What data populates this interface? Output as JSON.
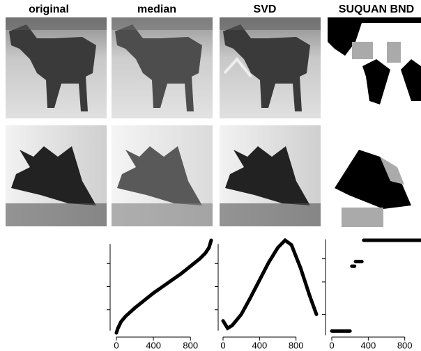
{
  "column_titles": [
    "original",
    "median",
    "SVD",
    "SUQUAN BND"
  ],
  "chart_data": [
    {
      "type": "line",
      "x": [
        0,
        16,
        50,
        100,
        200,
        300,
        400,
        500,
        600,
        700,
        800,
        900,
        960,
        1000,
        1024
      ],
      "values": [
        0,
        0.05,
        0.12,
        0.18,
        0.27,
        0.35,
        0.43,
        0.5,
        0.57,
        0.64,
        0.72,
        0.8,
        0.86,
        0.92,
        1.0
      ],
      "color": "#000000",
      "xlim": [
        0,
        1024
      ],
      "ylim": [
        0,
        1
      ],
      "xticks": [
        0,
        400,
        800
      ],
      "yticks": [
        0.25,
        0.5,
        0.75
      ]
    },
    {
      "type": "line",
      "x": [
        0,
        50,
        100,
        200,
        300,
        400,
        500,
        600,
        680,
        750,
        850,
        950,
        1024
      ],
      "values": [
        0.13,
        0.05,
        0.08,
        0.2,
        0.38,
        0.57,
        0.76,
        0.92,
        1.0,
        0.95,
        0.7,
        0.4,
        0.2
      ],
      "color": "#000000",
      "xlim": [
        0,
        1024
      ],
      "ylim": [
        0,
        1
      ],
      "xticks": [
        0,
        400,
        800
      ],
      "yticks": [
        0.25,
        0.5,
        0.75
      ]
    },
    {
      "type": "line",
      "x": [
        0,
        200,
        205,
        220,
        250,
        255,
        260,
        330,
        335,
        350,
        1024
      ],
      "values": [
        0.02,
        0.02,
        null,
        0.72,
        0.72,
        null,
        0.77,
        0.77,
        null,
        1,
        1
      ],
      "color": "#000000",
      "xlim": [
        0,
        1024
      ],
      "ylim": [
        0,
        1
      ],
      "xticks": [
        0,
        400,
        800
      ],
      "yticks": [
        0.2,
        0.55,
        0.8
      ]
    }
  ]
}
